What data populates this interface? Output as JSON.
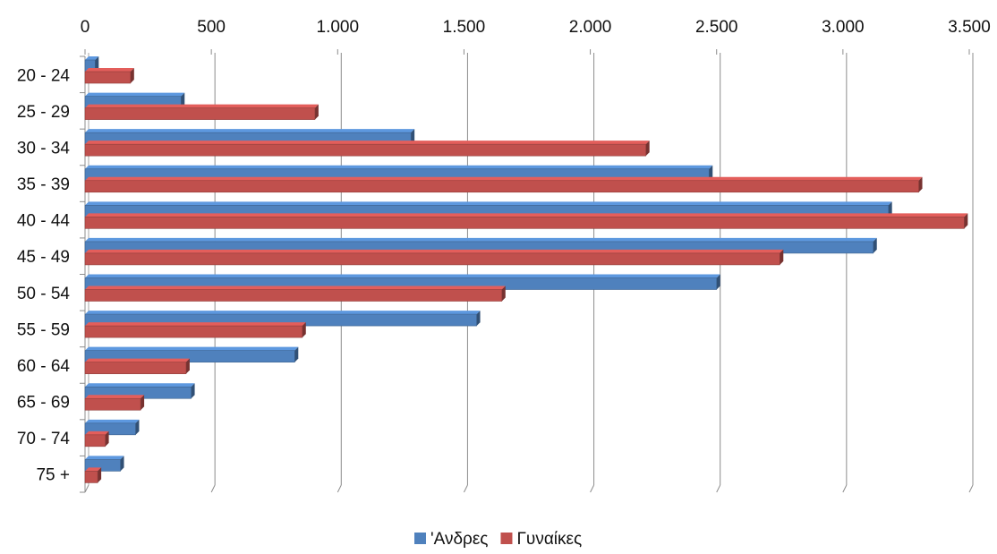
{
  "chart_data": {
    "type": "bar",
    "orientation": "horizontal",
    "title": "",
    "xlabel": "",
    "ylabel": "",
    "xlim": [
      0,
      3500
    ],
    "x_ticks": [
      0,
      500,
      1000,
      1500,
      2000,
      2500,
      3000,
      3500
    ],
    "x_tick_labels": [
      "0",
      "500",
      "1.000",
      "1.500",
      "2.000",
      "2.500",
      "3.000",
      "3.500"
    ],
    "x_axis_position": "top",
    "grid": "vertical",
    "legend_position": "bottom",
    "categories": [
      "20 - 24",
      "25 - 29",
      "30 - 34",
      "35 - 39",
      "40 - 44",
      "45 - 49",
      "50 - 54",
      "55 - 59",
      "60 - 64",
      "65 - 69",
      "70 - 74",
      "75 +"
    ],
    "series": [
      {
        "name": "'Ανδρες",
        "color": "#4F81BD",
        "values": [
          40,
          380,
          1290,
          2470,
          3180,
          3120,
          2500,
          1550,
          830,
          420,
          200,
          140
        ]
      },
      {
        "name": "Γυναίκες",
        "color": "#C0504D",
        "values": [
          180,
          910,
          2220,
          3300,
          3480,
          2750,
          1650,
          860,
          400,
          220,
          80,
          50
        ]
      }
    ]
  }
}
